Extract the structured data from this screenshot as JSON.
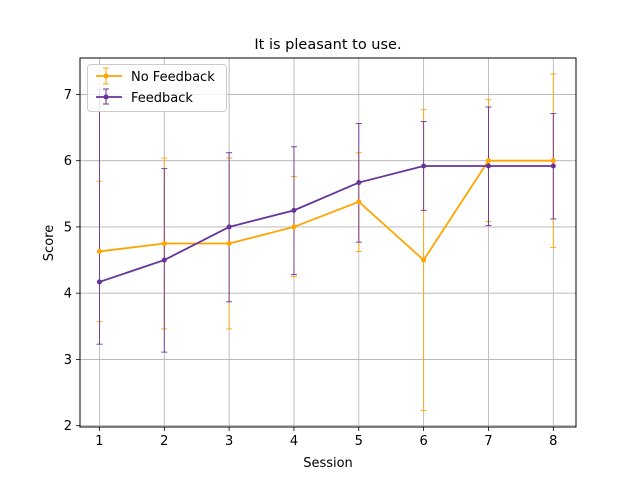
{
  "chart_data": {
    "type": "line",
    "title": "It is pleasant to use.",
    "xlabel": "Session",
    "ylabel": "Score",
    "x": [
      1,
      2,
      3,
      4,
      5,
      6,
      7,
      8
    ],
    "xlim": [
      0.7,
      8.35
    ],
    "ylim": [
      1.98,
      7.55
    ],
    "xticks": [
      "1",
      "2",
      "3",
      "4",
      "5",
      "6",
      "7",
      "8"
    ],
    "yticks": [
      "2",
      "3",
      "4",
      "5",
      "6",
      "7"
    ],
    "grid": true,
    "legend_position": "top-left",
    "series": [
      {
        "name": "No Feedback",
        "color": "#ffa500",
        "values": [
          4.63,
          4.75,
          4.75,
          5.0,
          5.38,
          4.5,
          6.0,
          6.0
        ],
        "error_low": [
          3.57,
          3.46,
          3.46,
          4.25,
          4.63,
          2.23,
          5.08,
          4.69
        ],
        "error_high": [
          5.69,
          6.04,
          6.04,
          5.76,
          6.12,
          6.77,
          6.92,
          7.31
        ]
      },
      {
        "name": "Feedback",
        "color": "#663399",
        "values": [
          4.17,
          4.5,
          5.0,
          5.25,
          5.67,
          5.92,
          5.92,
          5.92
        ],
        "error_low": [
          3.23,
          3.11,
          3.87,
          4.28,
          4.77,
          5.25,
          5.02,
          5.12
        ],
        "error_high": [
          7.08,
          5.88,
          6.12,
          6.21,
          6.56,
          6.59,
          6.81,
          6.71
        ],
        "error_cap_at_low": [
          3.23,
          3.11,
          3.87,
          4.28,
          4.77,
          5.25,
          5.02,
          5.12
        ]
      }
    ]
  }
}
